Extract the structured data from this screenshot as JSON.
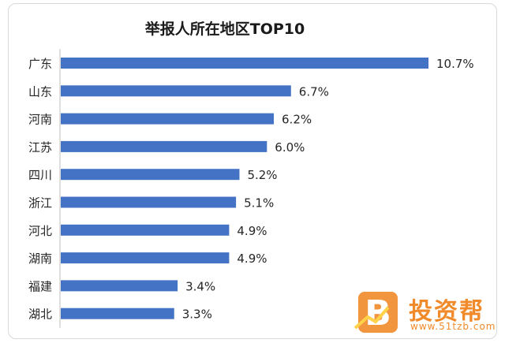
{
  "chart_data": {
    "type": "bar",
    "orientation": "horizontal",
    "title": "举报人所在地区TOP10",
    "categories": [
      "广东",
      "山东",
      "河南",
      "江苏",
      "四川",
      "浙江",
      "河北",
      "湖南",
      "福建",
      "湖北"
    ],
    "values": [
      10.7,
      6.7,
      6.2,
      6.0,
      5.2,
      5.1,
      4.9,
      4.9,
      3.4,
      3.3
    ],
    "value_labels": [
      "10.7%",
      "6.7%",
      "6.2%",
      "6.0%",
      "5.2%",
      "5.1%",
      "4.9%",
      "4.9%",
      "3.4%",
      "3.3%"
    ],
    "unit": "%",
    "bar_color": "#4472c4",
    "grid": false,
    "legend": "none"
  },
  "watermark": {
    "brand": "投资帮",
    "url": "www.51tzb.com",
    "logo_letter": "B",
    "color": "#f08a2a"
  }
}
